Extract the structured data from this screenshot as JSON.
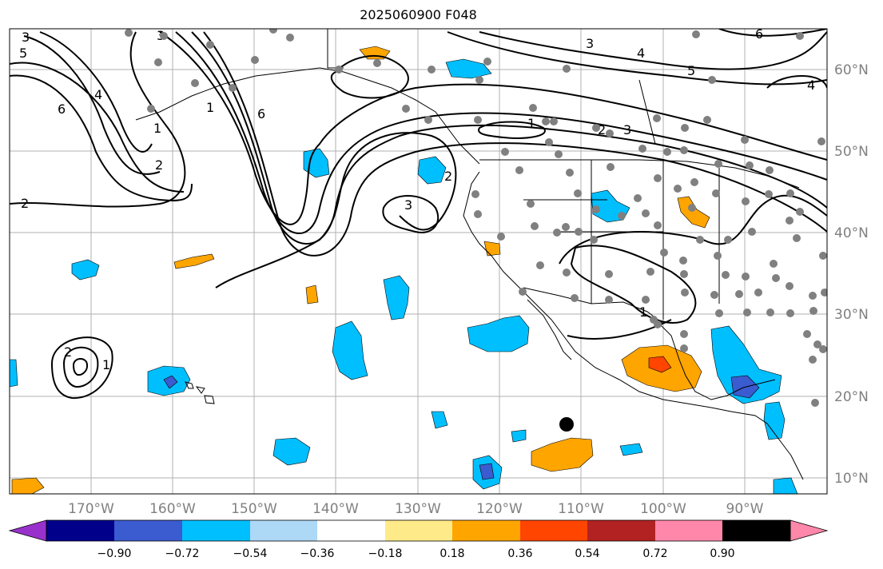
{
  "title": "2025060900 F048",
  "lon_labels": [
    "170°W",
    "160°W",
    "150°W",
    "140°W",
    "130°W",
    "120°W",
    "110°W",
    "100°W",
    "90°W"
  ],
  "lat_labels": [
    "60°N",
    "50°N",
    "40°N",
    "30°N",
    "20°N",
    "10°N"
  ],
  "colorbar": {
    "labels": [
      "−0.90",
      "−0.72",
      "−0.54",
      "−0.36",
      "−0.18",
      "0.18",
      "0.36",
      "0.54",
      "0.72",
      "0.90"
    ],
    "colors": [
      "#9932cc",
      "#00008b",
      "#3b5bd0",
      "#00bfff",
      "#add8f6",
      "#ffffff",
      "#ffea8a",
      "#ffa500",
      "#ff4500",
      "#b22222",
      "#ff88aa"
    ]
  },
  "contour_labels": [
    "3",
    "5",
    "4",
    "6",
    "1",
    "2",
    "1",
    "6",
    "3",
    "2",
    "2",
    "3",
    "3",
    "4",
    "5",
    "6",
    "4",
    "1",
    "2",
    "3",
    "1",
    "2",
    "1"
  ],
  "colors": {
    "grid": "#b0b0b0",
    "station": "#808080",
    "axis_text": "#808080"
  }
}
